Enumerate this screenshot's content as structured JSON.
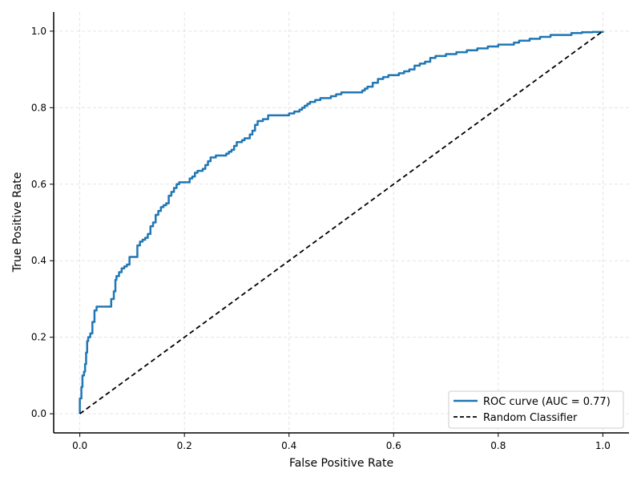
{
  "chart_data": {
    "type": "line",
    "title": "",
    "xlabel": "False Positive Rate",
    "ylabel": "True Positive Rate",
    "xlim": [
      -0.05,
      1.05
    ],
    "ylim": [
      -0.05,
      1.05
    ],
    "xticks": [
      0.0,
      0.2,
      0.4,
      0.6,
      0.8,
      1.0
    ],
    "yticks": [
      0.0,
      0.2,
      0.4,
      0.6,
      0.8,
      1.0
    ],
    "xtick_labels": [
      "0.0",
      "0.2",
      "0.4",
      "0.6",
      "0.8",
      "1.0"
    ],
    "ytick_labels": [
      "0.0",
      "0.2",
      "0.4",
      "0.6",
      "0.8",
      "1.0"
    ],
    "grid": true,
    "legend_position": "bottom-right",
    "series": [
      {
        "name": "ROC curve (AUC = 0.77)",
        "color": "#1f77b4",
        "style": "solid",
        "x": [
          0.0,
          0.0,
          0.003,
          0.005,
          0.008,
          0.01,
          0.012,
          0.014,
          0.016,
          0.02,
          0.024,
          0.028,
          0.032,
          0.038,
          0.045,
          0.056,
          0.06,
          0.065,
          0.068,
          0.07,
          0.075,
          0.08,
          0.085,
          0.09,
          0.095,
          0.1,
          0.11,
          0.115,
          0.12,
          0.125,
          0.13,
          0.135,
          0.14,
          0.145,
          0.15,
          0.155,
          0.16,
          0.165,
          0.17,
          0.175,
          0.18,
          0.185,
          0.19,
          0.195,
          0.2,
          0.21,
          0.215,
          0.22,
          0.225,
          0.235,
          0.24,
          0.245,
          0.25,
          0.26,
          0.27,
          0.28,
          0.285,
          0.29,
          0.295,
          0.3,
          0.31,
          0.315,
          0.32,
          0.325,
          0.33,
          0.335,
          0.34,
          0.35,
          0.36,
          0.38,
          0.39,
          0.4,
          0.41,
          0.42,
          0.425,
          0.43,
          0.435,
          0.44,
          0.45,
          0.46,
          0.47,
          0.48,
          0.49,
          0.5,
          0.52,
          0.54,
          0.545,
          0.55,
          0.56,
          0.57,
          0.58,
          0.59,
          0.6,
          0.61,
          0.62,
          0.63,
          0.64,
          0.65,
          0.66,
          0.67,
          0.68,
          0.7,
          0.72,
          0.74,
          0.76,
          0.78,
          0.8,
          0.82,
          0.83,
          0.84,
          0.86,
          0.88,
          0.9,
          0.92,
          0.94,
          0.96,
          0.98,
          1.0
        ],
        "y": [
          0.0,
          0.04,
          0.07,
          0.1,
          0.11,
          0.13,
          0.16,
          0.19,
          0.2,
          0.21,
          0.24,
          0.27,
          0.28,
          0.28,
          0.28,
          0.28,
          0.3,
          0.32,
          0.35,
          0.36,
          0.37,
          0.38,
          0.385,
          0.39,
          0.41,
          0.41,
          0.44,
          0.45,
          0.455,
          0.46,
          0.47,
          0.49,
          0.5,
          0.52,
          0.53,
          0.54,
          0.545,
          0.55,
          0.57,
          0.58,
          0.59,
          0.6,
          0.605,
          0.605,
          0.605,
          0.615,
          0.62,
          0.63,
          0.635,
          0.64,
          0.65,
          0.66,
          0.67,
          0.675,
          0.675,
          0.68,
          0.685,
          0.69,
          0.7,
          0.71,
          0.715,
          0.72,
          0.72,
          0.73,
          0.74,
          0.755,
          0.765,
          0.77,
          0.78,
          0.78,
          0.78,
          0.785,
          0.79,
          0.795,
          0.8,
          0.805,
          0.81,
          0.815,
          0.82,
          0.825,
          0.825,
          0.83,
          0.835,
          0.84,
          0.84,
          0.845,
          0.85,
          0.855,
          0.865,
          0.875,
          0.88,
          0.885,
          0.885,
          0.89,
          0.895,
          0.9,
          0.91,
          0.915,
          0.92,
          0.93,
          0.935,
          0.94,
          0.945,
          0.95,
          0.955,
          0.96,
          0.965,
          0.965,
          0.97,
          0.975,
          0.98,
          0.985,
          0.99,
          0.99,
          0.995,
          0.997,
          0.998,
          1.0
        ]
      },
      {
        "name": "Random Classifier",
        "color": "#000000",
        "style": "dashed",
        "x": [
          0.0,
          1.0
        ],
        "y": [
          0.0,
          1.0
        ]
      }
    ]
  }
}
